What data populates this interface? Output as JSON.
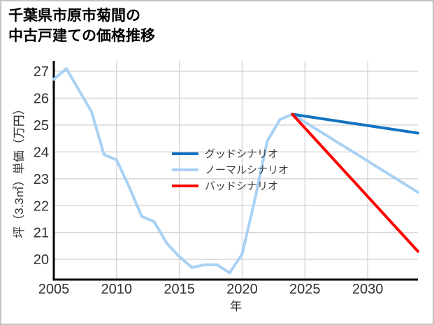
{
  "title": {
    "line1": "千葉県市原市菊間の",
    "line2": "中古戸建ての価格推移"
  },
  "chart_data": {
    "type": "line",
    "title": "千葉県市原市菊間の中古戸建ての価格推移",
    "xlabel": "年",
    "ylabel": "坪（3.3㎡）単価（万円）",
    "x_ticks": [
      2005,
      2010,
      2015,
      2020,
      2025,
      2030
    ],
    "y_ticks": [
      20,
      21,
      22,
      23,
      24,
      25,
      26,
      27
    ],
    "x_range": [
      2005,
      2034
    ],
    "y_range": [
      19.25,
      27.39
    ],
    "grid": true,
    "legend_position": "center-left",
    "series": [
      {
        "name": "ノーマルシナリオ",
        "color": "#a8d1f4",
        "x": [
          2005,
          2006,
          2007,
          2008,
          2009,
          2010,
          2011,
          2012,
          2013,
          2014,
          2015,
          2016,
          2017,
          2018,
          2019,
          2020,
          2021,
          2022,
          2023,
          2024,
          2034
        ],
        "values": [
          26.7,
          27.1,
          26.3,
          25.5,
          23.9,
          23.7,
          22.7,
          21.6,
          21.4,
          20.6,
          20.1,
          19.7,
          19.8,
          19.8,
          19.5,
          20.2,
          22.2,
          24.4,
          25.2,
          25.4,
          22.5
        ]
      },
      {
        "name": "グッドシナリオ",
        "color": "#1272c2",
        "x": [
          2024,
          2034
        ],
        "values": [
          25.4,
          24.7
        ]
      },
      {
        "name": "バッドシナリオ",
        "color": "#ff0000",
        "x": [
          2024,
          2034
        ],
        "values": [
          25.4,
          20.3
        ]
      }
    ]
  },
  "legend": {
    "items": [
      {
        "label": "グッドシナリオ",
        "color": "#1272c2"
      },
      {
        "label": "ノーマルシナリオ",
        "color": "#a8d1f4"
      },
      {
        "label": "バッドシナリオ",
        "color": "#ff0000"
      }
    ]
  },
  "colors": {
    "grid": "#d8d8d8",
    "axis": "#000000",
    "tick_label": "#303030",
    "border": "#c4c4c4"
  }
}
